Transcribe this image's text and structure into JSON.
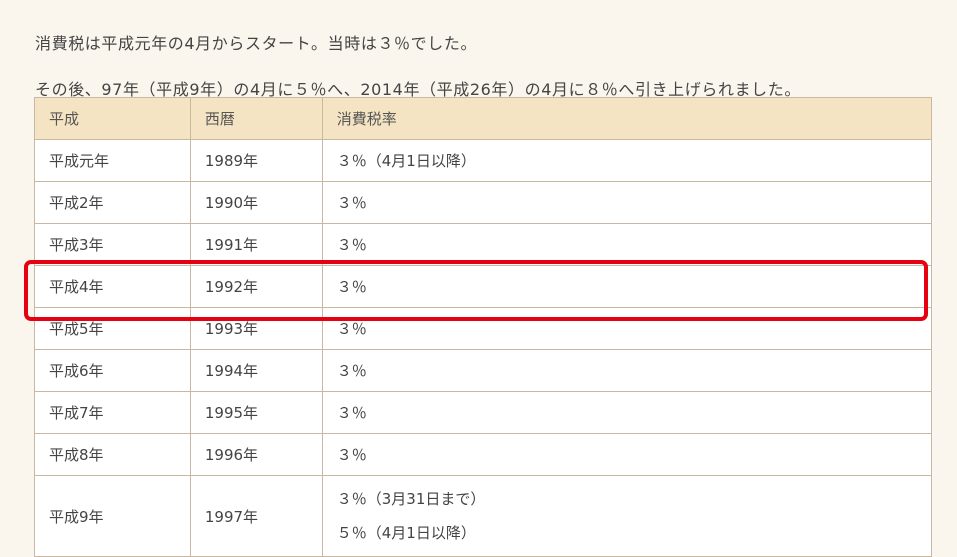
{
  "intro": {
    "line1": "消費税は平成元年の4月からスタート。当時は３％でした。",
    "line2": "その後、97年（平成9年）の4月に５％へ、2014年（平成26年）の4月に８％へ引き上げられました。"
  },
  "table": {
    "headers": [
      "平成",
      "西暦",
      "消費税率"
    ],
    "rows": [
      {
        "heisei": "平成元年",
        "seireki": "1989年",
        "rates": [
          "３％（4月1日以降）"
        ]
      },
      {
        "heisei": "平成2年",
        "seireki": "1990年",
        "rates": [
          "３％"
        ]
      },
      {
        "heisei": "平成3年",
        "seireki": "1991年",
        "rates": [
          "３％"
        ]
      },
      {
        "heisei": "平成4年",
        "seireki": "1992年",
        "rates": [
          "３％"
        ]
      },
      {
        "heisei": "平成5年",
        "seireki": "1993年",
        "rates": [
          "３％"
        ]
      },
      {
        "heisei": "平成6年",
        "seireki": "1994年",
        "rates": [
          "３％"
        ]
      },
      {
        "heisei": "平成7年",
        "seireki": "1995年",
        "rates": [
          "３％"
        ]
      },
      {
        "heisei": "平成8年",
        "seireki": "1996年",
        "rates": [
          "３％"
        ]
      },
      {
        "heisei": "平成9年",
        "seireki": "1997年",
        "rates": [
          "３％（3月31日まで）",
          "５％（4月1日以降）"
        ]
      }
    ]
  },
  "colors": {
    "highlight_border": "#e50012",
    "header_bg": "#f5e4c3",
    "page_bg": "#faf6ee"
  }
}
